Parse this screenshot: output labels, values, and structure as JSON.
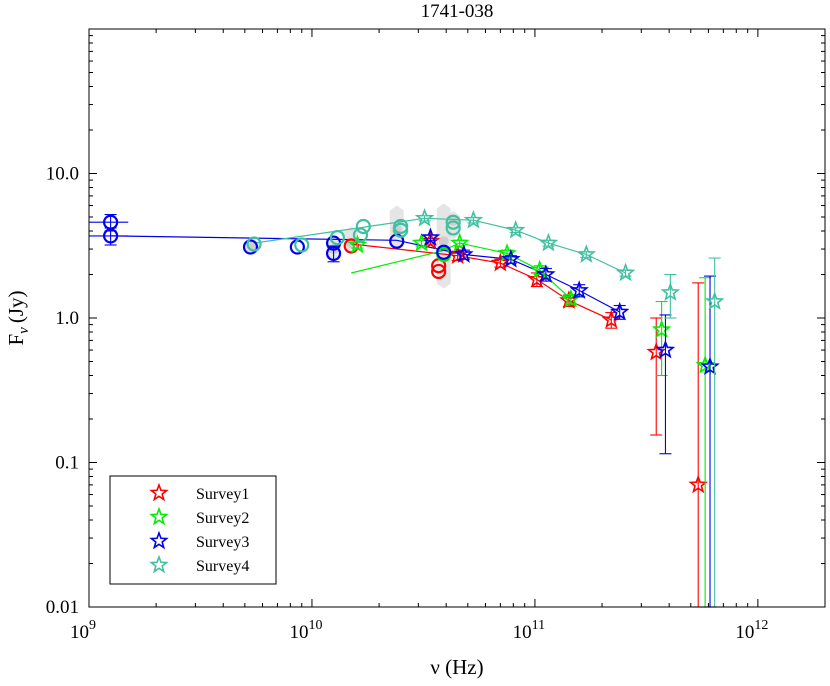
{
  "chart_data": {
    "type": "scatter",
    "title": "1741-038",
    "xlabel": "ν (Hz)",
    "ylabel": "Fν (Jy)",
    "ylabel_main": "F",
    "ylabel_sub": "ν",
    "ylabel_unit": "(Jy)",
    "xscale": "log",
    "yscale": "log",
    "xlim": [
      1000000000.0,
      2000000000000.0
    ],
    "ylim": [
      0.01,
      100
    ],
    "x_ticks": [
      {
        "value": 1000000000.0,
        "base": "10",
        "exp": "9"
      },
      {
        "value": 10000000000.0,
        "base": "10",
        "exp": "10"
      },
      {
        "value": 100000000000.0,
        "base": "10",
        "exp": "11"
      },
      {
        "value": 1000000000000.0,
        "base": "10",
        "exp": "12"
      }
    ],
    "y_ticks": [
      {
        "value": 0.01,
        "label": "0.01"
      },
      {
        "value": 0.1,
        "label": "0.1"
      },
      {
        "value": 1,
        "label": "1.0"
      },
      {
        "value": 10,
        "label": "10.0"
      }
    ],
    "legend_position": "bottom-left",
    "background_measurements": [
      {
        "x": 5400000000.0,
        "y": 3.1,
        "ylo": 2.7,
        "yhi": 3.6
      },
      {
        "x": 12500000000.0,
        "y": 3.0,
        "ylo": 2.4,
        "yhi": 3.7
      },
      {
        "x": 15000000000.0,
        "y": 3.3,
        "ylo": 2.8,
        "yhi": 4.3
      },
      {
        "x": 24000000000.0,
        "y": 4.1,
        "ylo": 3.0,
        "yhi": 6.0
      },
      {
        "x": 39000000000.0,
        "y": 3.4,
        "ylo": 1.6,
        "yhi": 6.2
      },
      {
        "x": 43000000000.0,
        "y": 4.7,
        "ylo": 3.5,
        "yhi": 5.5
      }
    ],
    "series": [
      {
        "name": "Survey1",
        "color": "#ff0000",
        "circles": [
          {
            "x": 15000000000.0,
            "y": 3.15
          },
          {
            "x": 37000000000.0,
            "y": 2.1
          },
          {
            "x": 37000000000.0,
            "y": 2.3
          }
        ],
        "line": [
          {
            "x": 15000000000.0,
            "y": 3.25
          },
          {
            "x": 45000000000.0,
            "y": 2.7
          },
          {
            "x": 70000000000.0,
            "y": 2.4
          },
          {
            "x": 102000000000.0,
            "y": 1.85
          },
          {
            "x": 142000000000.0,
            "y": 1.32
          },
          {
            "x": 220000000000.0,
            "y": 0.97
          }
        ],
        "stars": [
          {
            "x": 34000000000.0,
            "y": 3.4,
            "yerr": 0.15
          },
          {
            "x": 45000000000.0,
            "y": 2.7,
            "yerr": 0.2
          },
          {
            "x": 70000000000.0,
            "y": 2.4,
            "yerr": 0.15
          },
          {
            "x": 102000000000.0,
            "y": 1.85,
            "yerr": 0.2
          },
          {
            "x": 142000000000.0,
            "y": 1.32,
            "yerr": 0.12
          },
          {
            "x": 220000000000.0,
            "y": 0.97,
            "yerr": 0.12
          },
          {
            "x": 350000000000.0,
            "y": 0.58,
            "ylo": 0.155,
            "yhi": 1.0
          },
          {
            "x": 540000000000.0,
            "y": 0.07,
            "ylo": 0.01,
            "yhi": 1.75
          }
        ]
      },
      {
        "name": "Survey2",
        "color": "#00ee00",
        "circles": [
          {
            "x": 39000000000.0,
            "y": 2.75
          }
        ],
        "line": [
          {
            "x": 15000000000.0,
            "y": 2.05
          },
          {
            "x": 38000000000.0,
            "y": 2.9
          },
          {
            "x": 46000000000.0,
            "y": 3.3
          },
          {
            "x": 75000000000.0,
            "y": 2.8
          },
          {
            "x": 105000000000.0,
            "y": 2.15
          },
          {
            "x": 145000000000.0,
            "y": 1.35
          }
        ],
        "stars": [
          {
            "x": 16000000000.0,
            "y": 3.2,
            "yerr": 0.15
          },
          {
            "x": 31000000000.0,
            "y": 3.3,
            "yerr": 0.15
          },
          {
            "x": 46000000000.0,
            "y": 3.3,
            "yerr": 0.15
          },
          {
            "x": 75000000000.0,
            "y": 2.8,
            "yerr": 0.15
          },
          {
            "x": 105000000000.0,
            "y": 2.15,
            "yerr": 0.15
          },
          {
            "x": 145000000000.0,
            "y": 1.35,
            "yerr": 0.1
          },
          {
            "x": 370000000000.0,
            "y": 0.83,
            "ylo": 0.4,
            "yhi": 1.3
          },
          {
            "x": 580000000000.0,
            "y": 0.47,
            "ylo": 0.01,
            "yhi": 1.9
          }
        ]
      },
      {
        "name": "Survey3",
        "color": "#0000ee",
        "circles": [
          {
            "x": 1250000000.0,
            "y": 4.6,
            "xerr": 0.2,
            "yerr": 0.6
          },
          {
            "x": 1250000000.0,
            "y": 3.7,
            "xerr": 0.2,
            "yerr": 0.5
          },
          {
            "x": 5300000000.0,
            "y": 3.1
          },
          {
            "x": 8600000000.0,
            "y": 3.1
          },
          {
            "x": 12500000000.0,
            "y": 2.8,
            "yerr": 0.35
          },
          {
            "x": 12500000000.0,
            "y": 3.3
          },
          {
            "x": 24000000000.0,
            "y": 3.4
          },
          {
            "x": 39000000000.0,
            "y": 2.85
          }
        ],
        "line": [
          {
            "x": 1250000000.0,
            "y": 3.7
          },
          {
            "x": 24000000000.0,
            "y": 3.45
          },
          {
            "x": 48000000000.0,
            "y": 2.75
          },
          {
            "x": 78000000000.0,
            "y": 2.55
          },
          {
            "x": 112000000000.0,
            "y": 2.0
          },
          {
            "x": 158000000000.0,
            "y": 1.55
          },
          {
            "x": 240000000000.0,
            "y": 1.1
          }
        ],
        "stars": [
          {
            "x": 34000000000.0,
            "y": 3.6,
            "yerr": 0.15
          },
          {
            "x": 48000000000.0,
            "y": 2.75,
            "yerr": 0.2
          },
          {
            "x": 78000000000.0,
            "y": 2.55,
            "yerr": 0.15
          },
          {
            "x": 112000000000.0,
            "y": 2.0,
            "yerr": 0.2
          },
          {
            "x": 158000000000.0,
            "y": 1.55,
            "yerr": 0.15
          },
          {
            "x": 240000000000.0,
            "y": 1.1,
            "yerr": 0.12
          },
          {
            "x": 385000000000.0,
            "y": 0.6,
            "ylo": 0.115,
            "yhi": 1.05
          },
          {
            "x": 610000000000.0,
            "y": 0.46,
            "ylo": 0.01,
            "yhi": 1.95
          }
        ]
      },
      {
        "name": "Survey4",
        "color": "#40c0a0",
        "circles": [
          {
            "x": 5500000000.0,
            "y": 3.25
          },
          {
            "x": 9000000000.0,
            "y": 3.2
          },
          {
            "x": 13000000000.0,
            "y": 3.6
          },
          {
            "x": 16500000000.0,
            "y": 3.75
          },
          {
            "x": 17000000000.0,
            "y": 4.3
          },
          {
            "x": 25000000000.0,
            "y": 4.3
          },
          {
            "x": 25000000000.0,
            "y": 4.05
          },
          {
            "x": 43000000000.0,
            "y": 4.6
          },
          {
            "x": 43000000000.0,
            "y": 4.2
          }
        ],
        "line": [
          {
            "x": 5500000000.0,
            "y": 3.3
          },
          {
            "x": 32000000000.0,
            "y": 4.9
          },
          {
            "x": 53000000000.0,
            "y": 4.75
          },
          {
            "x": 82000000000.0,
            "y": 4.05
          },
          {
            "x": 115000000000.0,
            "y": 3.3
          },
          {
            "x": 170000000000.0,
            "y": 2.75
          },
          {
            "x": 255000000000.0,
            "y": 2.05
          }
        ],
        "stars": [
          {
            "x": 32000000000.0,
            "y": 4.9,
            "yerr": 0.2
          },
          {
            "x": 53000000000.0,
            "y": 4.75,
            "yerr": 0.2
          },
          {
            "x": 82000000000.0,
            "y": 4.05,
            "yerr": 0.15
          },
          {
            "x": 115000000000.0,
            "y": 3.3,
            "yerr": 0.15
          },
          {
            "x": 170000000000.0,
            "y": 2.75,
            "yerr": 0.12
          },
          {
            "x": 255000000000.0,
            "y": 2.05,
            "yerr": 0.1
          },
          {
            "x": 405000000000.0,
            "y": 1.5,
            "ylo": 1.0,
            "yhi": 2.0
          },
          {
            "x": 640000000000.0,
            "y": 1.3,
            "ylo": 0.01,
            "yhi": 2.6
          }
        ]
      }
    ]
  }
}
